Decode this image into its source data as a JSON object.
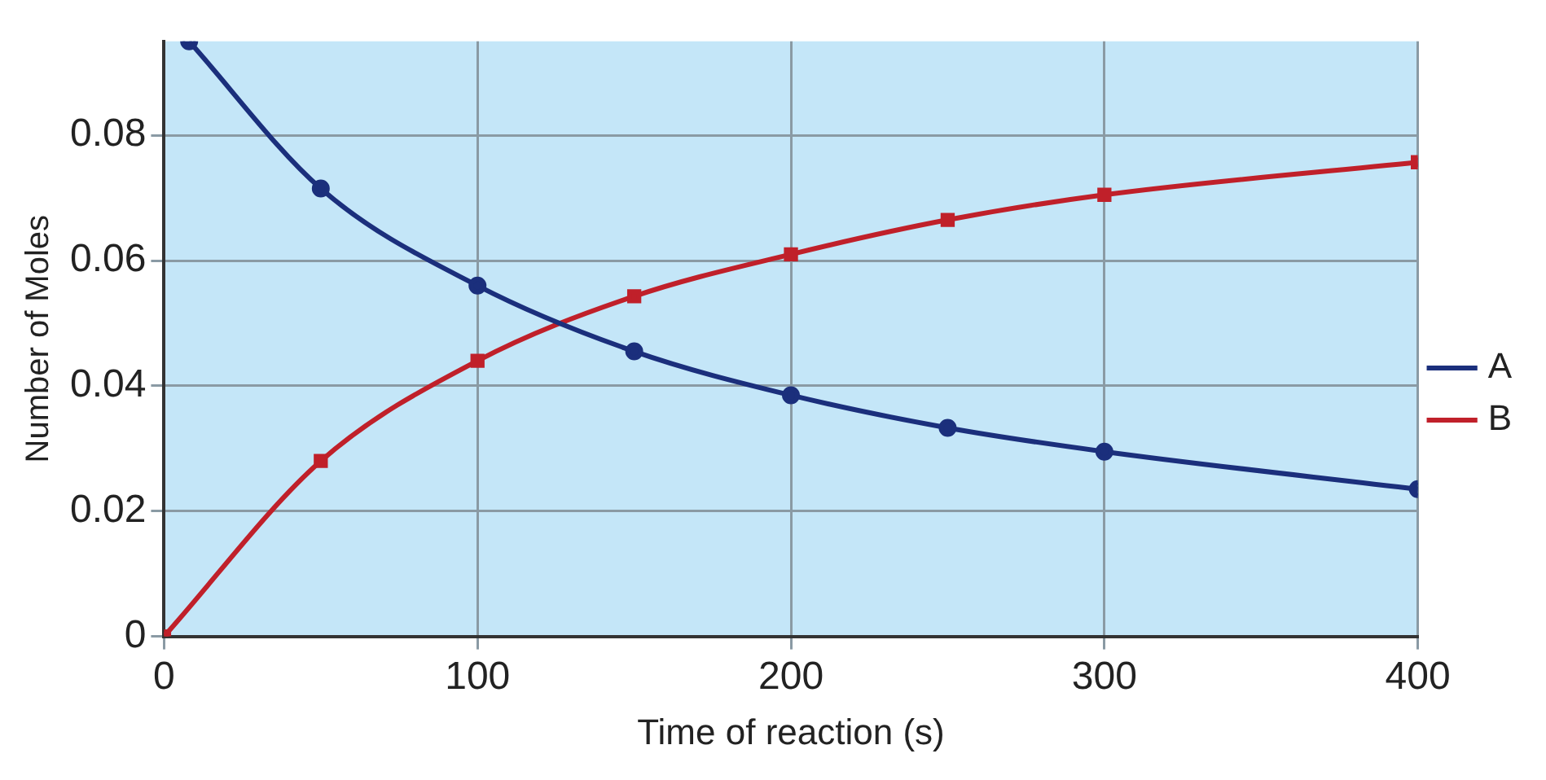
{
  "chart_data": {
    "type": "line",
    "xlabel": "Time of reaction (s)",
    "ylabel": "Number of Moles",
    "xlim": [
      0,
      400
    ],
    "xticks": [
      0,
      100,
      200,
      300,
      400
    ],
    "ylim": [
      0,
      0.095
    ],
    "yticks": [
      0,
      0.02,
      0.04,
      0.06,
      0.08
    ],
    "grid": true,
    "legend": "right",
    "line_style": "solid",
    "series": [
      {
        "name": "A",
        "color": "#1b2f7c",
        "marker": "circle",
        "x": [
          8,
          50,
          100,
          150,
          200,
          250,
          300,
          400
        ],
        "values": [
          0.095,
          0.0715,
          0.056,
          0.0455,
          0.0385,
          0.0333,
          0.0295,
          0.0235
        ]
      },
      {
        "name": "B",
        "color": "#c0202a",
        "marker": "square",
        "x": [
          0,
          50,
          100,
          150,
          200,
          250,
          300,
          400
        ],
        "values": [
          0,
          0.028,
          0.044,
          0.0543,
          0.061,
          0.0665,
          0.0705,
          0.0757
        ]
      }
    ]
  }
}
